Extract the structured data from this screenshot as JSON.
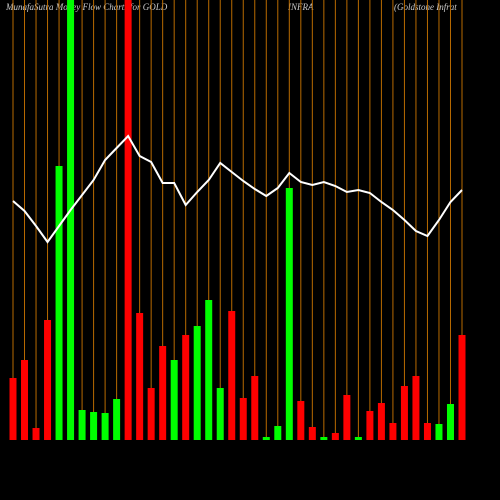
{
  "chart_data": {
    "type": "bar",
    "title": "MunafaSutra Money Flow Charts for GOLD",
    "title_parts": [
      "INFRA",
      "(Goldstone Infrat"
    ],
    "categories": [
      null,
      null,
      null,
      null,
      null,
      null,
      null,
      null,
      null,
      null,
      null,
      null,
      null,
      null,
      null,
      null,
      null,
      null,
      null,
      null,
      null,
      null,
      null,
      null,
      null,
      null,
      null,
      null,
      null,
      null,
      null,
      null,
      null,
      null,
      null,
      null,
      null,
      null,
      null,
      null
    ],
    "values": [
      62,
      80,
      12,
      120,
      274,
      440,
      30,
      28,
      27,
      41,
      440,
      127,
      52,
      94,
      80,
      105,
      114,
      140,
      52,
      129,
      42,
      64,
      3,
      14,
      252,
      39,
      13,
      3,
      7,
      45,
      3,
      29,
      37,
      17,
      54,
      64,
      17,
      16,
      36,
      105
    ],
    "colors": [
      "#ff0000",
      "#ff0000",
      "#ff0000",
      "#ff0000",
      "#00ff00",
      "#00ff00",
      "#00ff00",
      "#00ff00",
      "#00ff00",
      "#00ff00",
      "#ff0000",
      "#ff0000",
      "#ff0000",
      "#ff0000",
      "#00ff00",
      "#ff0000",
      "#00ff00",
      "#00ff00",
      "#00ff00",
      "#ff0000",
      "#ff0000",
      "#ff0000",
      "#00ff00",
      "#00ff00",
      "#00ff00",
      "#ff0000",
      "#ff0000",
      "#00ff00",
      "#ff0000",
      "#ff0000",
      "#00ff00",
      "#ff0000",
      "#ff0000",
      "#ff0000",
      "#ff0000",
      "#ff0000",
      "#ff0000",
      "#00ff00",
      "#00ff00",
      "#ff0000"
    ],
    "line": {
      "color": "#ffffff",
      "values": [
        239,
        229,
        214,
        198,
        214,
        230,
        245,
        260,
        280,
        292,
        304,
        284,
        278,
        257,
        257,
        235,
        248,
        260,
        277,
        268,
        259,
        251,
        244,
        252,
        267,
        258,
        255,
        258,
        254,
        248,
        250,
        247,
        238,
        230,
        220,
        209,
        204,
        220,
        238,
        250
      ]
    },
    "ylim": [
      0,
      440
    ],
    "grid": true,
    "grid_color": "#b86a00",
    "background": "#000000"
  }
}
